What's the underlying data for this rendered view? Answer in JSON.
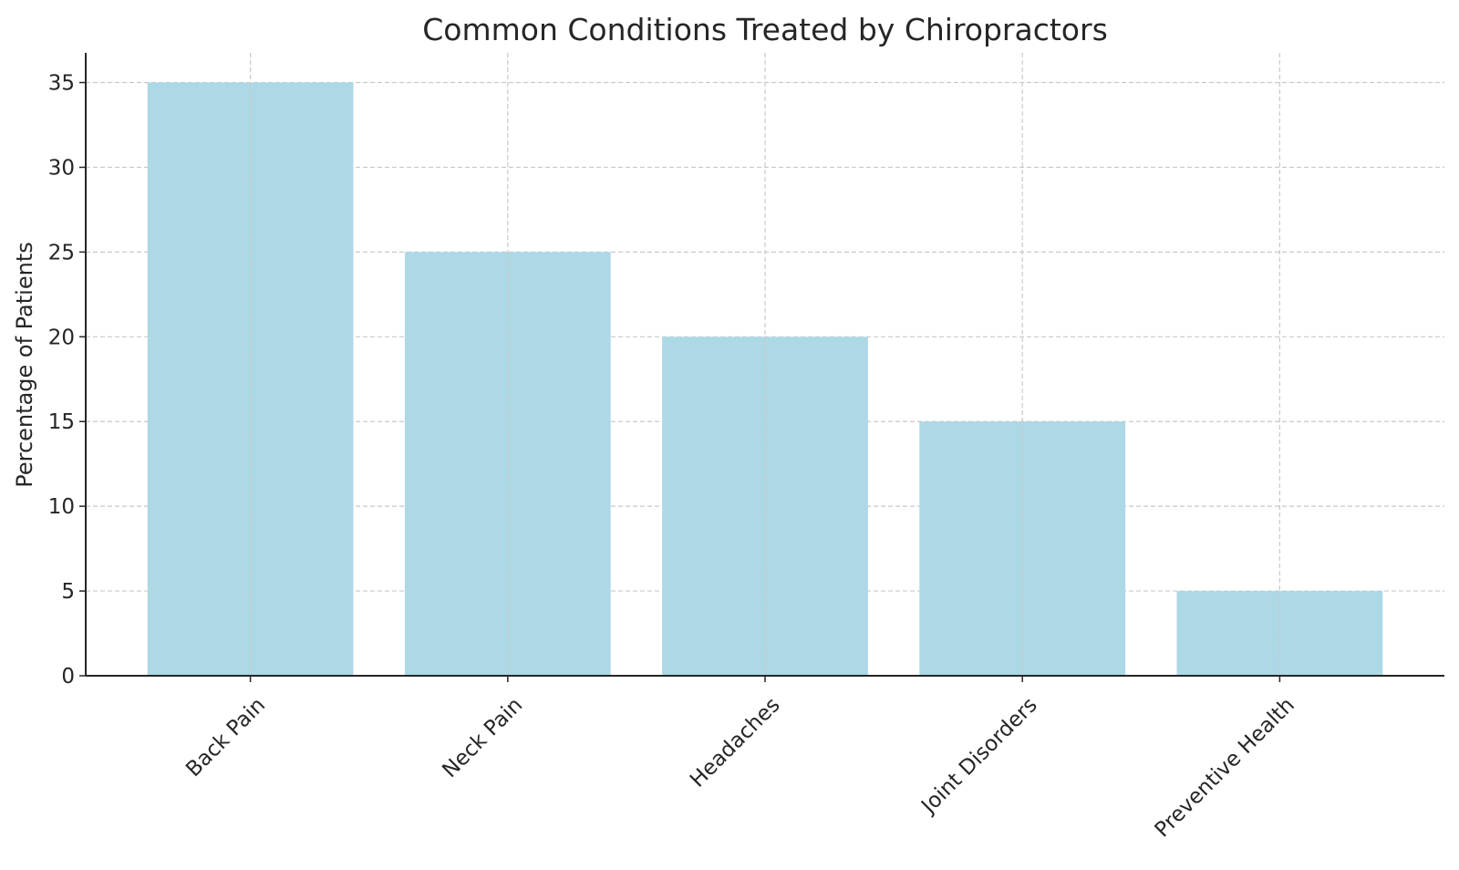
{
  "chart_data": {
    "type": "bar",
    "title": "Common Conditions Treated by Chiropractors",
    "xlabel": "",
    "ylabel": "Percentage of Patients",
    "categories": [
      "Back Pain",
      "Neck Pain",
      "Headaches",
      "Joint Disorders",
      "Preventive Health"
    ],
    "values": [
      35,
      25,
      20,
      15,
      5
    ],
    "ylim": [
      0,
      36.75
    ],
    "yticks": [
      0,
      5,
      10,
      15,
      20,
      25,
      30,
      35
    ],
    "grid": true,
    "bar_color": "#add8e6",
    "legend": "none"
  }
}
